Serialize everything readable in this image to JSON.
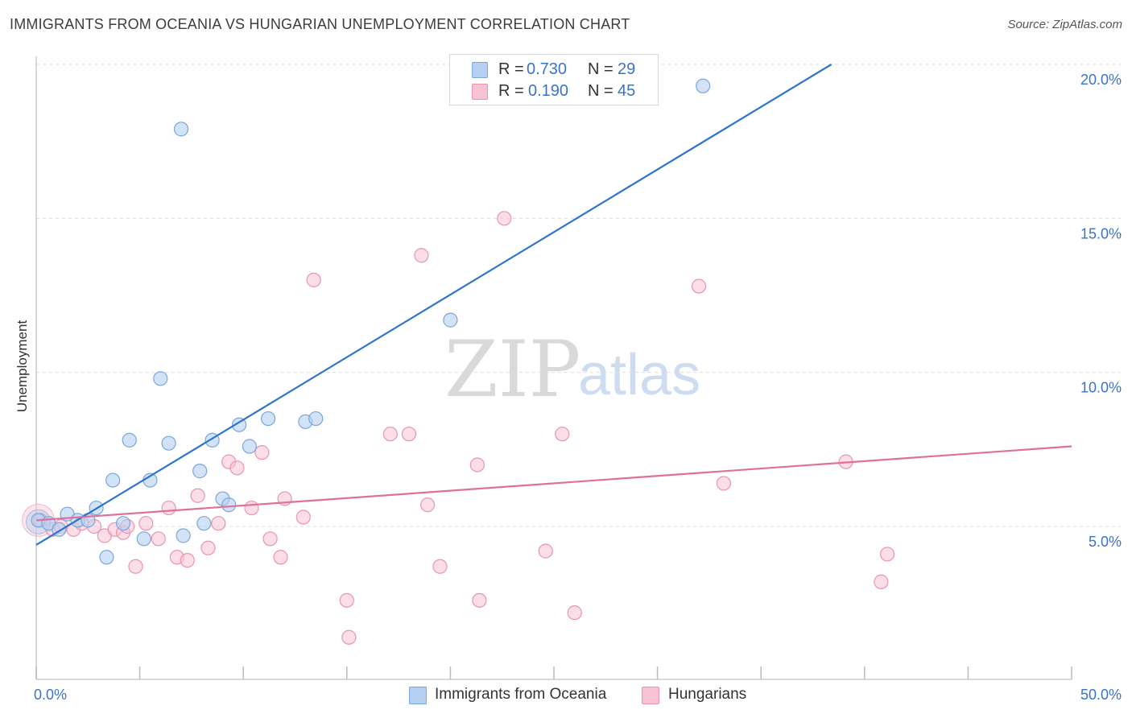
{
  "title": "IMMIGRANTS FROM OCEANIA VS HUNGARIAN UNEMPLOYMENT CORRELATION CHART",
  "source": "Source: ZipAtlas.com",
  "watermark": {
    "zip": "ZIP",
    "atlas": "atlas"
  },
  "legend": {
    "rows": [
      {
        "r_label": "R =",
        "r_value": "0.730",
        "n_label": "N =",
        "n_value": "29"
      },
      {
        "r_label": "R =",
        "r_value": "0.190",
        "n_label": "N =",
        "n_value": "45"
      }
    ],
    "bottom": [
      "Immigrants from Oceania",
      "Hungarians"
    ]
  },
  "colors": {
    "blue_fill": "#b5d0f2",
    "blue_stroke": "#7aa6dc",
    "blue_line": "#2f74c8",
    "pink_fill": "#f7c3d3",
    "pink_stroke": "#ea93b0",
    "pink_line": "#e0709a",
    "tick_text": "#3b73c4",
    "grid": "#dddddd"
  },
  "chart_data": {
    "type": "scatter",
    "title": "IMMIGRANTS FROM OCEANIA VS HUNGARIAN UNEMPLOYMENT CORRELATION CHART",
    "xlabel": "",
    "ylabel": "Unemployment",
    "xlim": [
      0,
      50
    ],
    "ylim": [
      0.6,
      20.5
    ],
    "x_tick_labels": [
      "0.0%",
      "50.0%"
    ],
    "y_ticks": [
      5,
      10,
      15,
      20
    ],
    "y_tick_labels": [
      "5.0%",
      "10.0%",
      "15.0%",
      "20.0%"
    ],
    "grid": true,
    "legend_position": "top-center",
    "series": [
      {
        "name": "Immigrants from Oceania",
        "color": "blue",
        "R": 0.73,
        "N": 29,
        "trend": {
          "x": [
            0.0,
            38.4
          ],
          "y": [
            4.4,
            20.0
          ]
        },
        "points": [
          [
            0.1,
            5.2
          ],
          [
            0.6,
            5.1
          ],
          [
            1.1,
            4.9
          ],
          [
            1.5,
            5.4
          ],
          [
            2.0,
            5.2
          ],
          [
            2.5,
            5.2
          ],
          [
            2.9,
            5.6
          ],
          [
            3.4,
            4.0
          ],
          [
            3.7,
            6.5
          ],
          [
            4.2,
            5.1
          ],
          [
            4.5,
            7.8
          ],
          [
            5.2,
            4.6
          ],
          [
            5.5,
            6.5
          ],
          [
            6.0,
            9.8
          ],
          [
            6.4,
            7.7
          ],
          [
            7.0,
            17.9
          ],
          [
            7.1,
            4.7
          ],
          [
            7.9,
            6.8
          ],
          [
            8.1,
            5.1
          ],
          [
            8.5,
            7.8
          ],
          [
            9.0,
            5.9
          ],
          [
            9.3,
            5.7
          ],
          [
            9.8,
            8.3
          ],
          [
            10.3,
            7.6
          ],
          [
            11.2,
            8.5
          ],
          [
            13.0,
            8.4
          ],
          [
            13.5,
            8.5
          ],
          [
            20.0,
            11.7
          ],
          [
            32.2,
            19.3
          ]
        ]
      },
      {
        "name": "Hungarians",
        "color": "pink",
        "R": 0.19,
        "N": 45,
        "trend": {
          "x": [
            0.0,
            50.0
          ],
          "y": [
            5.2,
            7.6
          ]
        },
        "points": [
          [
            0.2,
            5.2
          ],
          [
            0.8,
            4.9
          ],
          [
            1.2,
            5.0
          ],
          [
            1.8,
            4.9
          ],
          [
            2.2,
            5.1
          ],
          [
            2.8,
            5.0
          ],
          [
            3.3,
            4.7
          ],
          [
            3.8,
            4.9
          ],
          [
            4.2,
            4.8
          ],
          [
            4.4,
            5.0
          ],
          [
            4.8,
            3.7
          ],
          [
            5.3,
            5.1
          ],
          [
            5.9,
            4.6
          ],
          [
            6.4,
            5.6
          ],
          [
            6.8,
            4.0
          ],
          [
            7.3,
            3.9
          ],
          [
            7.8,
            6.0
          ],
          [
            8.3,
            4.3
          ],
          [
            8.8,
            5.1
          ],
          [
            9.3,
            7.1
          ],
          [
            9.7,
            6.9
          ],
          [
            10.4,
            5.6
          ],
          [
            10.9,
            7.4
          ],
          [
            11.3,
            4.6
          ],
          [
            11.8,
            4.0
          ],
          [
            12.0,
            5.9
          ],
          [
            12.9,
            5.3
          ],
          [
            13.4,
            13.0
          ],
          [
            15.0,
            2.6
          ],
          [
            15.1,
            1.4
          ],
          [
            17.1,
            8.0
          ],
          [
            18.0,
            8.0
          ],
          [
            18.6,
            13.8
          ],
          [
            18.9,
            5.7
          ],
          [
            19.5,
            3.7
          ],
          [
            21.3,
            7.0
          ],
          [
            21.4,
            2.6
          ],
          [
            22.6,
            15.0
          ],
          [
            24.6,
            4.2
          ],
          [
            25.4,
            8.0
          ],
          [
            26.0,
            2.2
          ],
          [
            32.0,
            12.8
          ],
          [
            33.2,
            6.4
          ],
          [
            39.1,
            7.1
          ],
          [
            40.8,
            3.2
          ]
        ]
      }
    ]
  },
  "extra_pink_point": [
    41.1,
    4.1
  ]
}
